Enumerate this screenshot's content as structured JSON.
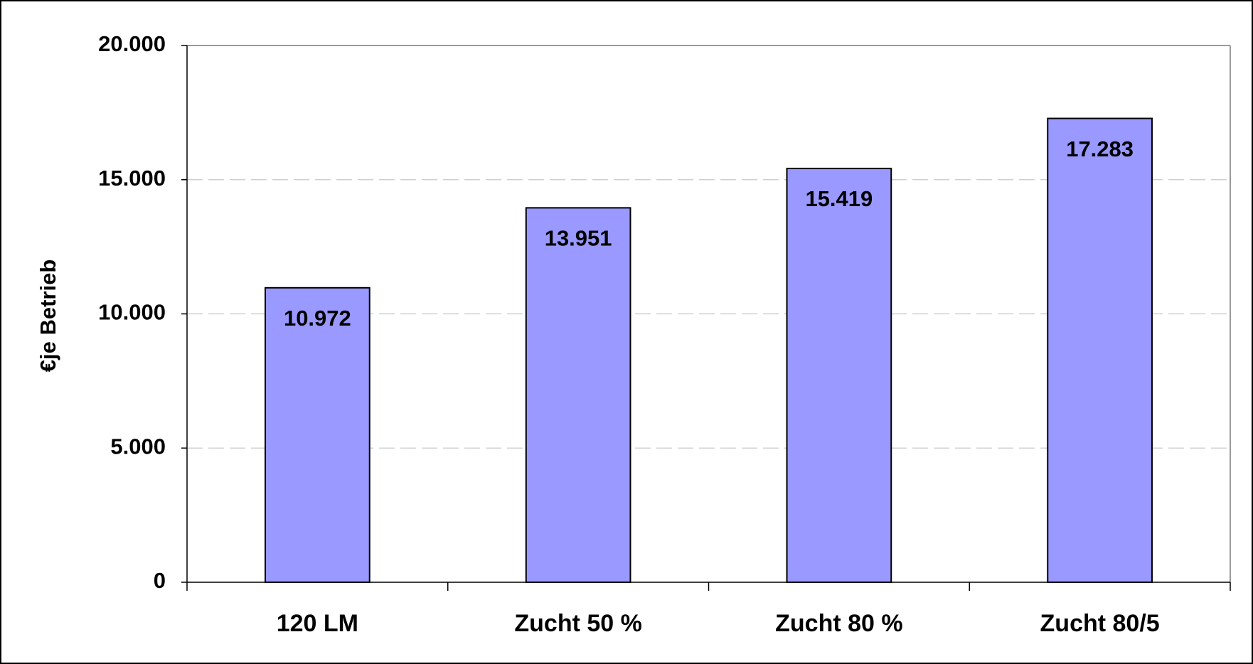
{
  "chart_data": {
    "type": "bar",
    "y_label": "€je Betrieb",
    "categories": [
      "120 LM",
      "Zucht 50 %",
      "Zucht 80 %",
      "Zucht 80/5"
    ],
    "values": [
      10972,
      13951,
      15419,
      17283
    ],
    "value_labels": [
      "10.972",
      "13.951",
      "15.419",
      "17.283"
    ],
    "color": "#9999ff",
    "ylim": [
      0,
      20000
    ],
    "yticks": [
      0,
      {
        "value": 5000,
        "label": "5.000"
      },
      {
        "value": 10000,
        "label": "10.000"
      },
      {
        "value": 15000,
        "label": "15.000"
      },
      {
        "value": 20000,
        "label": "20.000"
      }
    ],
    "grid": true
  }
}
